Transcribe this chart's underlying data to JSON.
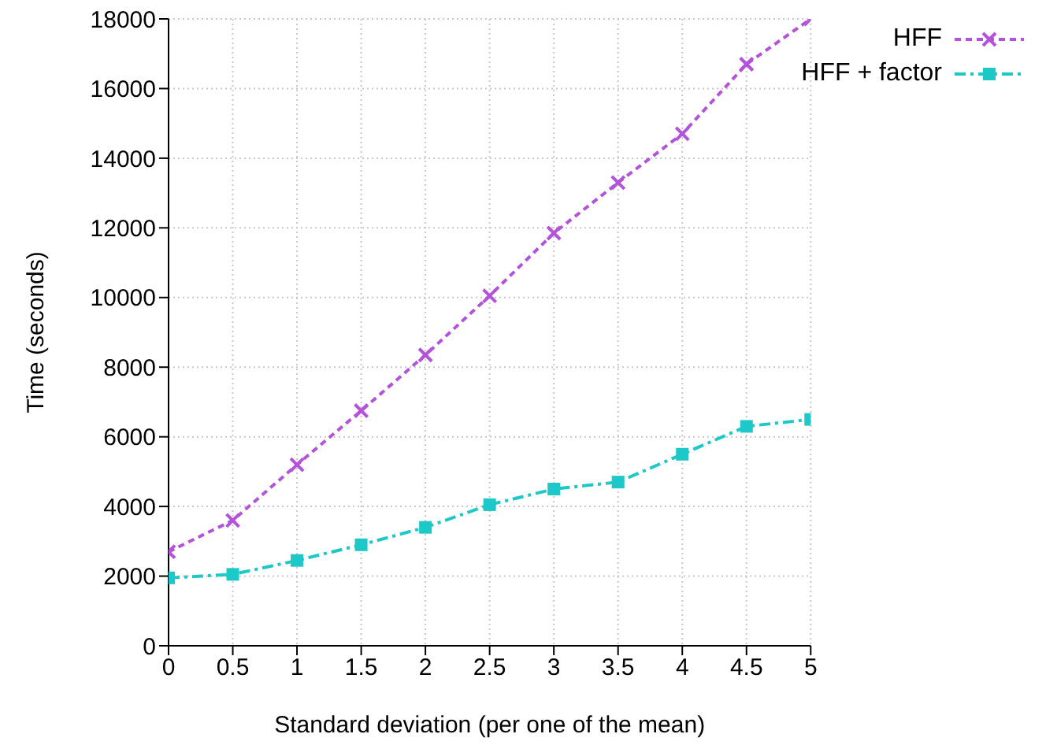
{
  "chart_data": {
    "type": "line",
    "xlabel": "Standard deviation (per one of the mean)",
    "ylabel": "Time (seconds)",
    "x": [
      0,
      0.5,
      1,
      1.5,
      2,
      2.5,
      3,
      3.5,
      4,
      4.5,
      5
    ],
    "series": [
      {
        "name": "HFF",
        "color": "#b452dc",
        "marker": "cross",
        "line_style": "dotted",
        "values": [
          2700,
          3600,
          5200,
          6750,
          8350,
          10050,
          11850,
          13300,
          14700,
          16700,
          18000
        ]
      },
      {
        "name": "HFF + factor",
        "color": "#1cc8c8",
        "marker": "square",
        "line_style": "dashed",
        "values": [
          1950,
          2050,
          2450,
          2900,
          3400,
          4050,
          4500,
          4700,
          5500,
          6300,
          6500
        ]
      }
    ],
    "xlim": [
      0,
      5
    ],
    "xticks": [
      0,
      0.5,
      1,
      1.5,
      2,
      2.5,
      3,
      3.5,
      4,
      4.5,
      5
    ],
    "ylim": [
      0,
      18000
    ],
    "yticks": [
      0,
      2000,
      4000,
      6000,
      8000,
      10000,
      12000,
      14000,
      16000,
      18000
    ],
    "grid": true,
    "legend": "top right"
  }
}
